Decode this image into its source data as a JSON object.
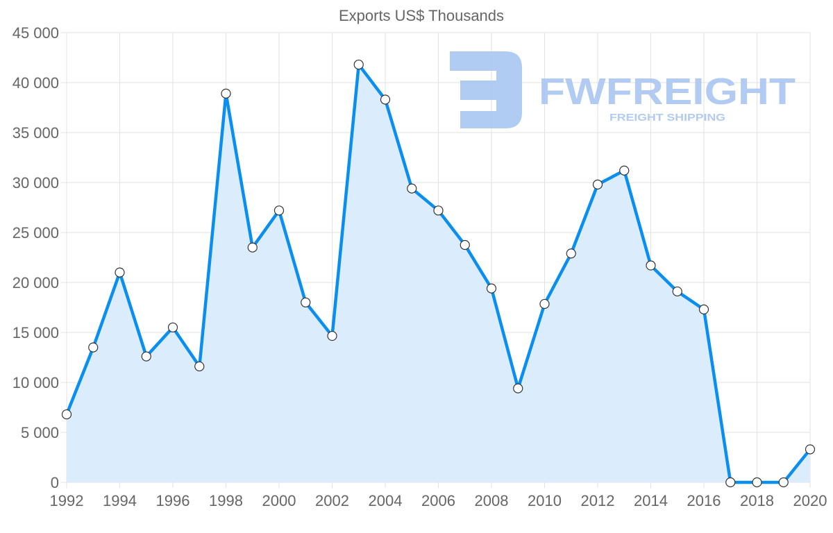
{
  "chart_data": {
    "type": "area",
    "title": "Exports US$ Thousands",
    "xlabel": "",
    "ylabel": "",
    "x": [
      1992,
      1993,
      1994,
      1995,
      1996,
      1997,
      1998,
      1999,
      2000,
      2001,
      2002,
      2003,
      2004,
      2005,
      2006,
      2007,
      2008,
      2009,
      2010,
      2011,
      2012,
      2013,
      2014,
      2015,
      2016,
      2017,
      2018,
      2019,
      2020
    ],
    "values": [
      6800,
      13500,
      21000,
      12600,
      15500,
      11600,
      38900,
      23500,
      27200,
      18000,
      14650,
      41800,
      38300,
      29400,
      27200,
      23750,
      19400,
      9400,
      17850,
      22900,
      29800,
      31200,
      21700,
      19100,
      17300,
      0,
      0,
      0,
      3300
    ],
    "xlim": [
      1992,
      2020
    ],
    "ylim": [
      0,
      45000
    ],
    "yticks": [
      "0",
      "5 000",
      "10 000",
      "15 000",
      "20 000",
      "25 000",
      "30 000",
      "35 000",
      "40 000",
      "45 000"
    ],
    "xticks": [
      "1992",
      "1994",
      "1996",
      "1998",
      "2000",
      "2002",
      "2004",
      "2006",
      "2008",
      "2010",
      "2012",
      "2014",
      "2016",
      "2018",
      "2020"
    ],
    "grid": true,
    "legend": "none",
    "colors": {
      "line": "#0a8ff0",
      "fill": "#dbedfc",
      "grid": "#e2e2e2",
      "text": "#666666",
      "watermark": "#a9c6f2"
    }
  },
  "watermark": {
    "brand": "FWFREIGHT",
    "tagline": "FREIGHT SHIPPING"
  }
}
